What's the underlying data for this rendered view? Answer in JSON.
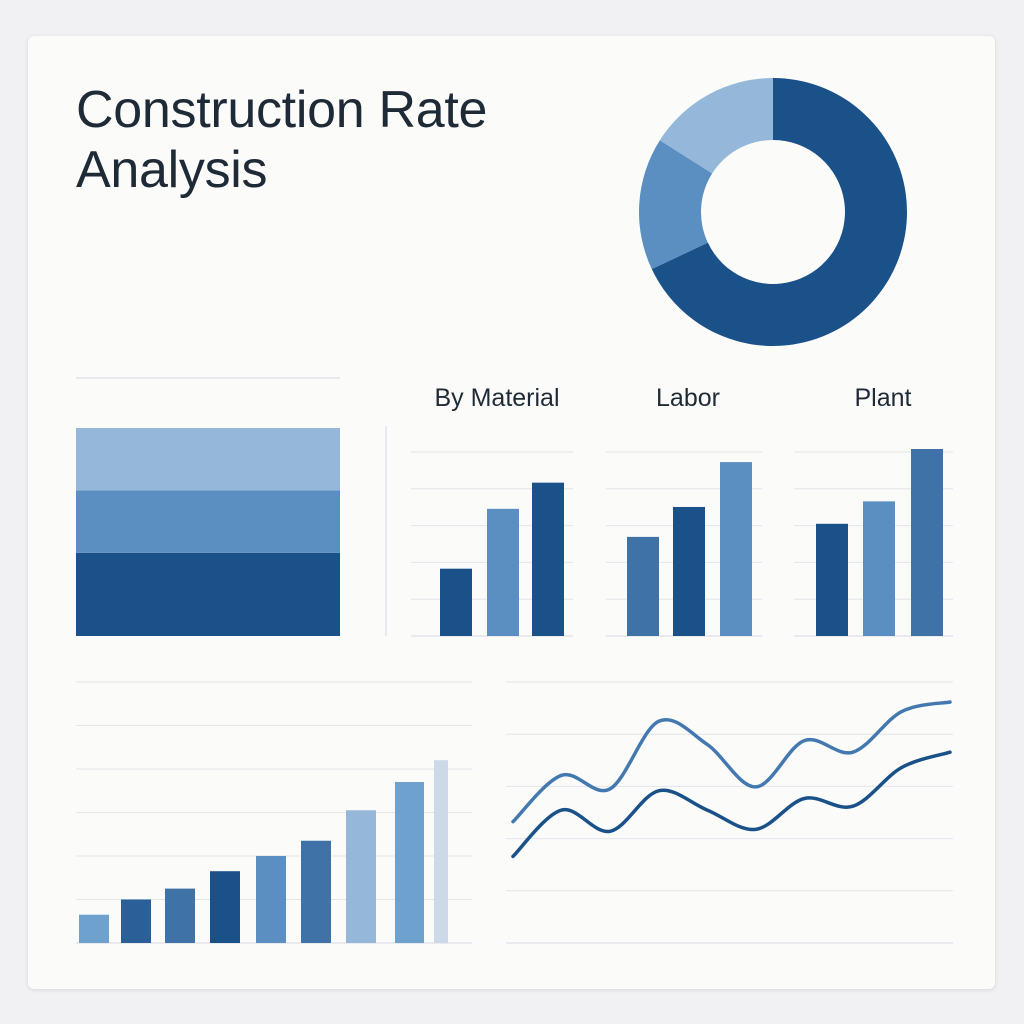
{
  "title_lines": [
    "Construction Rate",
    "Analysis"
  ],
  "colors": {
    "dark": "#1a5189",
    "medium_dark": "#3f72a6",
    "medium": "#5b8fc2",
    "light": "#95b8da",
    "pale": "#ccd9e8",
    "grid": "#e2e5ea",
    "text": "#1f2a37"
  },
  "chart_data": [
    {
      "type": "pie",
      "variant": "donut",
      "slices": [
        {
          "value": 68,
          "color": "#1a5189"
        },
        {
          "value": 16,
          "color": "#5b8fc2"
        },
        {
          "value": 16,
          "color": "#95b8da"
        }
      ]
    },
    {
      "type": "bar",
      "variant": "stacked",
      "categories": [
        ""
      ],
      "series": [
        {
          "values": [
            40
          ],
          "color": "#1a5189"
        },
        {
          "values": [
            30
          ],
          "color": "#5b8fc2"
        },
        {
          "values": [
            30
          ],
          "color": "#95b8da"
        }
      ],
      "ylim": [
        0,
        100
      ]
    },
    {
      "type": "bar",
      "title": "By Material",
      "values": [
        36,
        68,
        82
      ],
      "colors": [
        "#1a5189",
        "#5b8fc2",
        "#1a5189"
      ],
      "ylim": [
        0,
        100
      ],
      "grid": true
    },
    {
      "type": "bar",
      "title": "Labor",
      "values": [
        53,
        69,
        93
      ],
      "colors": [
        "#3f72a6",
        "#1a5189",
        "#5b8fc2"
      ],
      "ylim": [
        0,
        100
      ],
      "grid": true
    },
    {
      "type": "bar",
      "title": "Plant",
      "values": [
        60,
        72,
        100
      ],
      "colors": [
        "#1a5189",
        "#5b8fc2",
        "#3f72a6"
      ],
      "ylim": [
        0,
        100
      ],
      "grid": true
    },
    {
      "type": "bar",
      "values": [
        13,
        20,
        25,
        33,
        40,
        47,
        61,
        74,
        84
      ],
      "colors": [
        "#6fa1cf",
        "#2a5f97",
        "#3f72a6",
        "#1a5189",
        "#5b8fc2",
        "#3f72a6",
        "#95b8da",
        "#6fa1cf",
        "#ccd9e8"
      ],
      "ylim": [
        0,
        100
      ],
      "grid": true
    },
    {
      "type": "line",
      "x": [
        0,
        1,
        2,
        3,
        4,
        5,
        6,
        7,
        8,
        9
      ],
      "series": [
        {
          "values": [
            38,
            62,
            55,
            90,
            78,
            56,
            80,
            74,
            95,
            100
          ],
          "color": "#4479b0"
        },
        {
          "values": [
            20,
            44,
            33,
            54,
            44,
            34,
            50,
            46,
            66,
            74
          ],
          "color": "#1a5189"
        }
      ],
      "ylim": [
        0,
        100
      ],
      "grid": true
    }
  ]
}
